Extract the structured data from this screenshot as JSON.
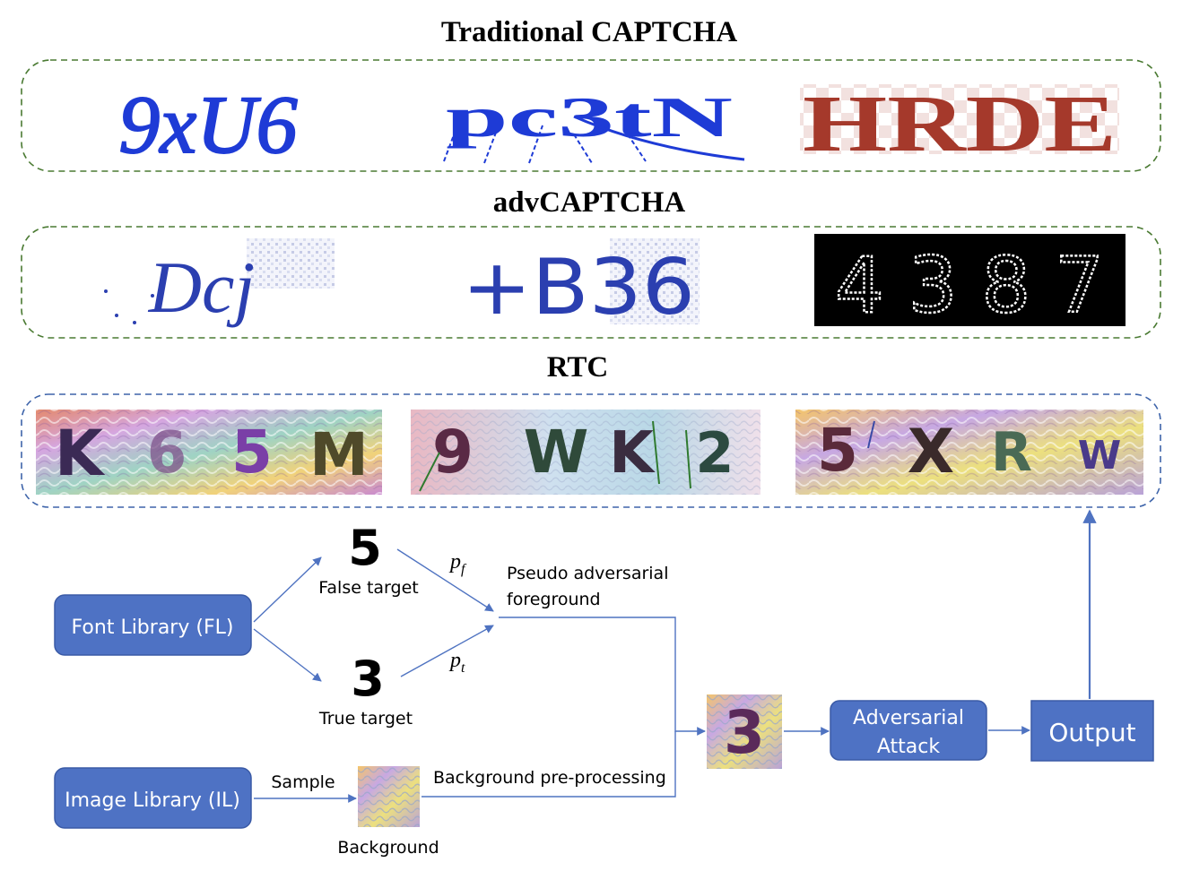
{
  "sections": {
    "traditional": {
      "title": "Traditional CAPTCHA",
      "samples": [
        "9xU6",
        "pc3tN",
        "HRDE"
      ]
    },
    "adv": {
      "title": "advCAPTCHA",
      "samples": [
        "Dcj",
        "+B36",
        "4387"
      ]
    },
    "rtc": {
      "title": "RTC",
      "samples": [
        [
          "K",
          "6",
          "5",
          "M"
        ],
        [
          "9",
          "W",
          "K",
          "2"
        ],
        [
          "5",
          "X",
          "R",
          "W"
        ]
      ]
    }
  },
  "flow": {
    "font_library": "Font Library (FL)",
    "image_library": "Image Library (IL)",
    "false_digit": "5",
    "false_label": "False target",
    "true_digit": "3",
    "true_label": "True target",
    "pf": "p",
    "pf_sub": "f",
    "pt": "p",
    "pt_sub": "t",
    "pseudo_line1": "Pseudo adversarial",
    "pseudo_line2": "foreground",
    "sample_label": "Sample",
    "background_label": "Background",
    "bg_preproc": "Background pre-processing",
    "composite_digit": "3",
    "attack_line1": "Adversarial",
    "attack_line2": "Attack",
    "output": "Output"
  },
  "colors": {
    "box_fill": "#4e72c4",
    "box_stroke": "#3a5aa6",
    "arrow": "#4f73c1",
    "dash_green": "#4a7a32",
    "dash_blue": "#3e64aa",
    "captcha_blue": "#1e3bd6",
    "captcha_red": "#a5392b",
    "rtc_dark": "#3b2a55"
  }
}
